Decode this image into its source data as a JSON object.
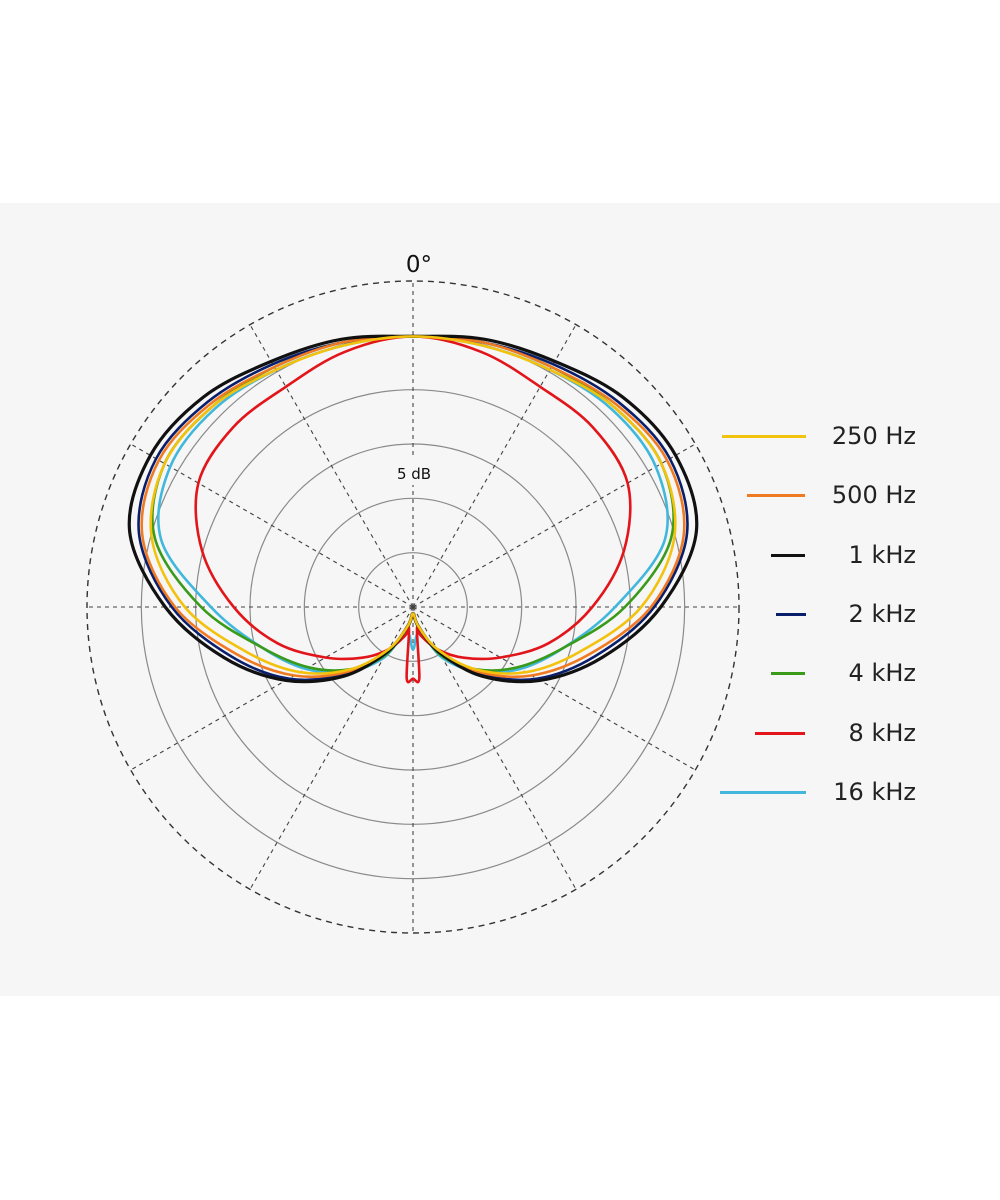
{
  "chart_data": {
    "type": "polar",
    "angle_label": "0°",
    "ring_label": "5 dB",
    "rings": 6,
    "spokes": 12,
    "grid": true,
    "legend_position": "right",
    "series": [
      {
        "name": "250 Hz",
        "color": "#f2c20e",
        "angles_deg": [
          0,
          15,
          30,
          45,
          60,
          75,
          90,
          105,
          120,
          135,
          150,
          165,
          180
        ],
        "radii_fraction": [
          0.83,
          0.83,
          0.84,
          0.87,
          0.88,
          0.83,
          0.7,
          0.53,
          0.4,
          0.27,
          0.15,
          0.06,
          0.02
        ]
      },
      {
        "name": "500 Hz",
        "color": "#f07a22",
        "angles_deg": [
          0,
          15,
          30,
          45,
          60,
          75,
          90,
          105,
          120,
          135,
          150,
          165,
          180
        ],
        "radii_fraction": [
          0.83,
          0.84,
          0.85,
          0.88,
          0.9,
          0.86,
          0.73,
          0.56,
          0.42,
          0.28,
          0.15,
          0.06,
          0.02
        ]
      },
      {
        "name": "1 kHz",
        "color": "#111111",
        "angles_deg": [
          0,
          15,
          30,
          45,
          60,
          75,
          90,
          105,
          120,
          135,
          150,
          165,
          180
        ],
        "radii_fraction": [
          0.83,
          0.85,
          0.87,
          0.91,
          0.93,
          0.9,
          0.76,
          0.6,
          0.45,
          0.3,
          0.16,
          0.06,
          0.02
        ]
      },
      {
        "name": "2 kHz",
        "color": "#0a1f6b",
        "angles_deg": [
          0,
          15,
          30,
          45,
          60,
          75,
          90,
          105,
          120,
          135,
          150,
          165,
          180
        ],
        "radii_fraction": [
          0.83,
          0.84,
          0.86,
          0.89,
          0.91,
          0.87,
          0.74,
          0.58,
          0.44,
          0.29,
          0.16,
          0.06,
          0.02
        ]
      },
      {
        "name": "4 kHz",
        "color": "#3a9a1a",
        "angles_deg": [
          0,
          15,
          30,
          45,
          60,
          75,
          90,
          105,
          120,
          135,
          150,
          165,
          180
        ],
        "radii_fraction": [
          0.83,
          0.84,
          0.85,
          0.87,
          0.88,
          0.82,
          0.65,
          0.48,
          0.37,
          0.27,
          0.17,
          0.06,
          0.02
        ]
      },
      {
        "name": "8 kHz",
        "color": "#e2151b",
        "angles_deg": [
          0,
          15,
          30,
          45,
          60,
          75,
          90,
          105,
          120,
          135,
          150,
          165,
          170,
          175,
          180
        ],
        "radii_fraction": [
          0.83,
          0.81,
          0.78,
          0.78,
          0.76,
          0.67,
          0.55,
          0.43,
          0.31,
          0.22,
          0.15,
          0.09,
          0.07,
          0.22,
          0.22
        ]
      },
      {
        "name": "16 kHz",
        "color": "#42b7dc",
        "angles_deg": [
          0,
          15,
          30,
          45,
          60,
          75,
          90,
          105,
          120,
          135,
          150,
          165,
          180
        ],
        "radii_fraction": [
          0.83,
          0.83,
          0.84,
          0.86,
          0.86,
          0.8,
          0.62,
          0.48,
          0.38,
          0.28,
          0.18,
          0.08,
          0.13
        ]
      }
    ]
  }
}
